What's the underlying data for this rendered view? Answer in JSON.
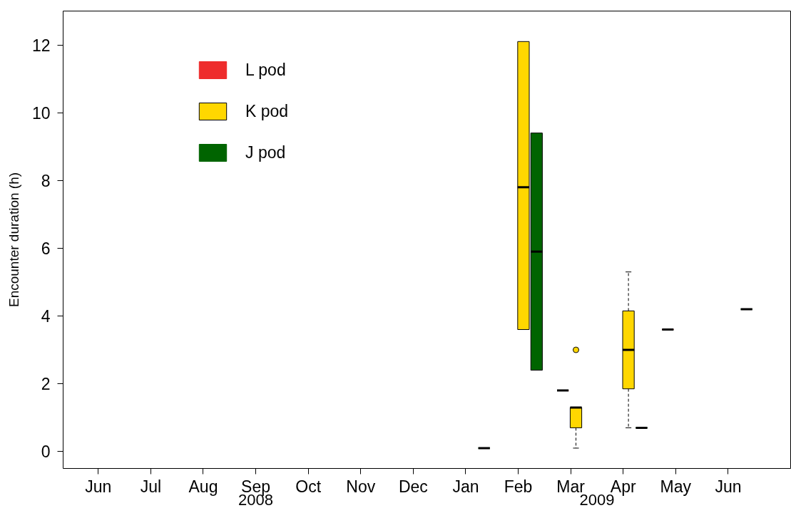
{
  "chart_data": {
    "type": "box",
    "ylabel": "Encounter duration (h)",
    "categories": [
      "Jun",
      "Jul",
      "Aug",
      "Sep",
      "Oct",
      "Nov",
      "Dec",
      "Jan",
      "Feb",
      "Mar",
      "Apr",
      "May",
      "Jun"
    ],
    "annotations": [
      "2008",
      "2009"
    ],
    "ylim": [
      -0.5,
      13
    ],
    "yticks": [
      0,
      2,
      4,
      6,
      8,
      10,
      12
    ],
    "legend": "top left",
    "series": [
      {
        "name": "L pod",
        "color": "#ee2c2c",
        "boxes": [
          null,
          null,
          null,
          null,
          null,
          null,
          null,
          null,
          null,
          {
            "low": 1.8,
            "q1": 1.8,
            "median": 1.8,
            "q3": 1.8,
            "high": 1.8
          },
          null,
          {
            "low": 3.6,
            "q1": 3.6,
            "median": 3.6,
            "q3": 3.6,
            "high": 3.6
          },
          null
        ]
      },
      {
        "name": "K pod",
        "color": "#ffd700",
        "boxes": [
          null,
          null,
          null,
          null,
          null,
          null,
          null,
          null,
          {
            "low": 3.6,
            "q1": 3.6,
            "median": 7.8,
            "q3": 12.1,
            "high": 12.1
          },
          {
            "low": 0.1,
            "q1": 0.7,
            "median": 1.3,
            "q3": 1.3,
            "high": 1.3,
            "outliers": [
              3.0
            ]
          },
          {
            "low": 0.7,
            "q1": 1.85,
            "median": 3.0,
            "q3": 4.15,
            "high": 5.3
          },
          null,
          null
        ]
      },
      {
        "name": "J pod",
        "color": "#006400",
        "boxes": [
          null,
          null,
          null,
          null,
          null,
          null,
          null,
          {
            "low": 0.1,
            "q1": 0.1,
            "median": 0.1,
            "q3": 0.1,
            "high": 0.1
          },
          {
            "low": 2.4,
            "q1": 2.4,
            "median": 5.9,
            "q3": 9.4,
            "high": 9.4
          },
          null,
          {
            "low": 0.7,
            "q1": 0.7,
            "median": 0.7,
            "q3": 0.7,
            "high": 0.7
          },
          null,
          {
            "low": 4.2,
            "q1": 4.2,
            "median": 4.2,
            "q3": 4.2,
            "high": 4.2
          }
        ]
      }
    ]
  }
}
